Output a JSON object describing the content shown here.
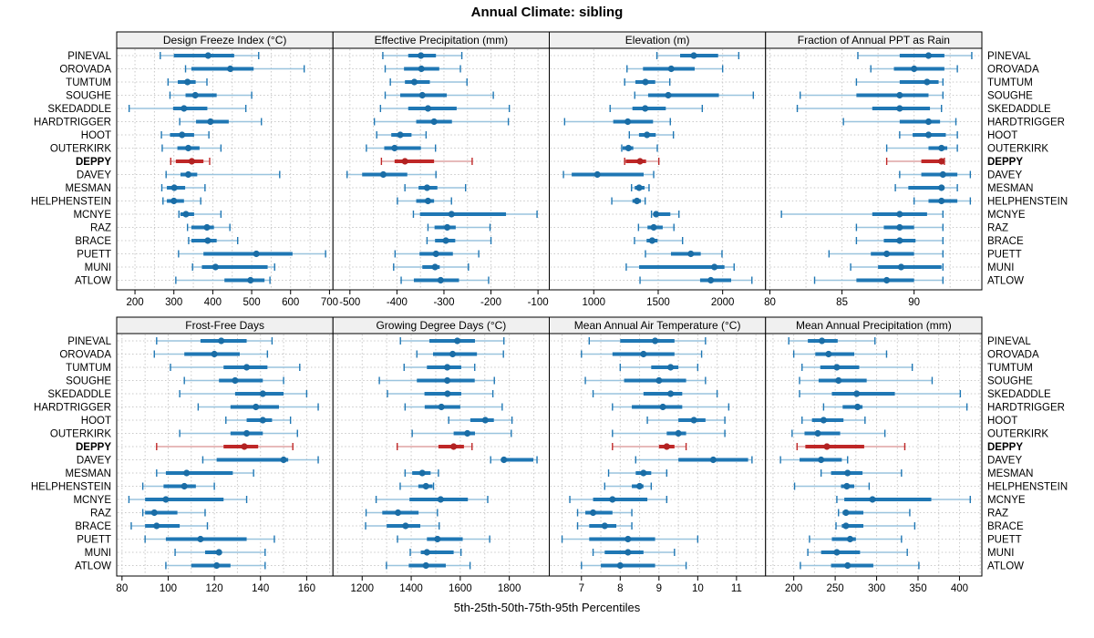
{
  "title": "Annual Climate: sibling",
  "caption": "5th-25th-50th-75th-95th Percentiles",
  "highlight_site": "DEPPY",
  "colors": {
    "main_blue": "#1f77b4",
    "light_blue": "#9ac4de",
    "dot_blue": "#1a6da6",
    "main_red": "#bf2727",
    "light_red": "#dfa3a3",
    "dot_red": "#b22222",
    "strip_bg": "#f0f0f0",
    "grid": "#c9c9c9",
    "border": "#000000"
  },
  "sites": [
    "PINEVAL",
    "OROVADA",
    "TUMTUM",
    "SOUGHE",
    "SKEDADDLE",
    "HARDTRIGGER",
    "HOOT",
    "OUTERKIRK",
    "DEPPY",
    "DAVEY",
    "MESMAN",
    "HELPHENSTEIN",
    "MCNYE",
    "RAZ",
    "BRACE",
    "PUETT",
    "MUNI",
    "ATLOW"
  ],
  "chart_data": {
    "type": "dotplot-percentiles",
    "percentile_labels": [
      "5th",
      "25th",
      "50th",
      "75th",
      "95th"
    ],
    "layout": "2 rows x 4 columns trellis, shared site rows, DEPPY highlighted red/bold",
    "panels": [
      {
        "title": "Design Freeze Index (°C)",
        "xlim": [
          153,
          709
        ],
        "ticks": [
          200,
          300,
          400,
          500,
          600,
          700
        ],
        "grid_step": 50,
        "values": [
          [
            265,
            300,
            388,
            455,
            518
          ],
          [
            330,
            345,
            445,
            505,
            635
          ],
          [
            285,
            310,
            335,
            356,
            385
          ],
          [
            290,
            330,
            355,
            410,
            500
          ],
          [
            185,
            298,
            326,
            386,
            485
          ],
          [
            315,
            357,
            394,
            441,
            525
          ],
          [
            268,
            290,
            321,
            352,
            390
          ],
          [
            270,
            309,
            337,
            366,
            421
          ],
          [
            292,
            305,
            346,
            376,
            392
          ],
          [
            280,
            317,
            337,
            360,
            572
          ],
          [
            269,
            282,
            301,
            329,
            380
          ],
          [
            272,
            282,
            300,
            326,
            369
          ],
          [
            313,
            317,
            331,
            352,
            421
          ],
          [
            335,
            345,
            385,
            403,
            444
          ],
          [
            338,
            345,
            387,
            410,
            464
          ],
          [
            312,
            376,
            512,
            605,
            690
          ],
          [
            348,
            372,
            407,
            541,
            559
          ],
          [
            305,
            430,
            497,
            533,
            547
          ]
        ]
      },
      {
        "title": "Effective Precipitation (mm)",
        "xlim": [
          -536,
          -76
        ],
        "ticks": [
          -500,
          -400,
          -300,
          -200,
          -100
        ],
        "grid_step": 50,
        "values": [
          [
            -430,
            -376,
            -349,
            -317,
            -262
          ],
          [
            -425,
            -385,
            -348,
            -310,
            -265
          ],
          [
            -414,
            -383,
            -363,
            -330,
            -251
          ],
          [
            -425,
            -393,
            -346,
            -294,
            -195
          ],
          [
            -435,
            -376,
            -334,
            -273,
            -161
          ],
          [
            -448,
            -359,
            -321,
            -283,
            -163
          ],
          [
            -443,
            -412,
            -393,
            -369,
            -338
          ],
          [
            -465,
            -427,
            -405,
            -349,
            -318
          ],
          [
            -433,
            -405,
            -383,
            -321,
            -240
          ],
          [
            -506,
            -474,
            -429,
            -378,
            -317
          ],
          [
            -383,
            -354,
            -336,
            -314,
            -254
          ],
          [
            -399,
            -359,
            -334,
            -321,
            -284
          ],
          [
            -365,
            -351,
            -284,
            -168,
            -102
          ],
          [
            -334,
            -320,
            -293,
            -275,
            -202
          ],
          [
            -336,
            -319,
            -296,
            -276,
            -200
          ],
          [
            -404,
            -352,
            -317,
            -281,
            -226
          ],
          [
            -407,
            -346,
            -319,
            -309,
            -248
          ],
          [
            -391,
            -364,
            -307,
            -268,
            -205
          ]
        ]
      },
      {
        "title": "Elevation (m)",
        "xlim": [
          655,
          2333
        ],
        "ticks": [
          1000,
          1500,
          2000
        ],
        "grid_step": 500,
        "values": [
          [
            1490,
            1670,
            1776,
            1965,
            2125
          ],
          [
            1258,
            1382,
            1601,
            1783,
            2000
          ],
          [
            1240,
            1323,
            1401,
            1477,
            1590
          ],
          [
            1318,
            1422,
            1578,
            1971,
            2238
          ],
          [
            1127,
            1300,
            1399,
            1559,
            1842
          ],
          [
            774,
            1151,
            1264,
            1460,
            1594
          ],
          [
            1276,
            1351,
            1413,
            1481,
            1618
          ],
          [
            1217,
            1224,
            1269,
            1307,
            1493
          ],
          [
            1240,
            1248,
            1359,
            1406,
            1505
          ],
          [
            765,
            829,
            1028,
            1387,
            1465
          ],
          [
            1293,
            1318,
            1352,
            1394,
            1429
          ],
          [
            1140,
            1300,
            1335,
            1366,
            1399
          ],
          [
            1448,
            1477,
            1484,
            1594,
            1661
          ],
          [
            1347,
            1417,
            1465,
            1535,
            1622
          ],
          [
            1316,
            1410,
            1453,
            1495,
            1689
          ],
          [
            1401,
            1599,
            1753,
            1830,
            1995
          ],
          [
            1252,
            1352,
            1936,
            2014,
            2089
          ],
          [
            1359,
            1825,
            1908,
            2066,
            2227
          ]
        ]
      },
      {
        "title": "Fraction of Annual PPT as Rain",
        "xlim": [
          79.7,
          94.7
        ],
        "ticks": [
          80,
          85,
          90
        ],
        "grid_step": 2.5,
        "values": [
          [
            86.1,
            89.0,
            91.0,
            92.1,
            94.0
          ],
          [
            87.0,
            88.6,
            90.0,
            92.1,
            93.0
          ],
          [
            86.0,
            89.0,
            90.9,
            91.7,
            92.0
          ],
          [
            82.1,
            86.0,
            89.0,
            91.0,
            92.0
          ],
          [
            81.9,
            87.1,
            89.0,
            91.1,
            91.9
          ],
          [
            85.1,
            89.0,
            91.0,
            91.8,
            92.9
          ],
          [
            89.0,
            89.9,
            91.0,
            92.2,
            93.0
          ],
          [
            88.1,
            91.0,
            91.9,
            92.3,
            93.0
          ],
          [
            88.1,
            90.5,
            91.9,
            92.0,
            92.1
          ],
          [
            89.0,
            90.5,
            92.0,
            93.0,
            93.9
          ],
          [
            88.7,
            89.6,
            91.9,
            92.1,
            93.0
          ],
          [
            90.0,
            91.0,
            91.9,
            93.0,
            93.9
          ],
          [
            80.8,
            87.1,
            89.0,
            90.9,
            92.0
          ],
          [
            86.0,
            87.9,
            89.0,
            90.0,
            92.0
          ],
          [
            86.0,
            87.9,
            89.0,
            90.1,
            92.0
          ],
          [
            84.1,
            87.0,
            88.1,
            90.0,
            92.0
          ],
          [
            85.6,
            87.5,
            89.1,
            91.9,
            92.0
          ],
          [
            83.1,
            86.0,
            88.1,
            90.0,
            92.0
          ]
        ]
      },
      {
        "title": "Frost-Free Days",
        "xlim": [
          77.7,
          171.4
        ],
        "ticks": [
          80,
          100,
          120,
          140,
          160
        ],
        "grid_step": 10,
        "values": [
          [
            95,
            114,
            123,
            134,
            145
          ],
          [
            94,
            107,
            120,
            131,
            143
          ],
          [
            101,
            124,
            134,
            143,
            157
          ],
          [
            107,
            122,
            129,
            141,
            150
          ],
          [
            105,
            129,
            141,
            150,
            160
          ],
          [
            113,
            127,
            138,
            148,
            165
          ],
          [
            125,
            134,
            141,
            145,
            153
          ],
          [
            105,
            127,
            134,
            141,
            156
          ],
          [
            95,
            124,
            133,
            139,
            154
          ],
          [
            115,
            121,
            150,
            152,
            165
          ],
          [
            95,
            99,
            108,
            128,
            137
          ],
          [
            89,
            98,
            107,
            112,
            120
          ],
          [
            83,
            90,
            99,
            124,
            134
          ],
          [
            89,
            90,
            94,
            104,
            116
          ],
          [
            84,
            90,
            95,
            105,
            117
          ],
          [
            90,
            99,
            114,
            134,
            146
          ],
          [
            103,
            116,
            122,
            123,
            142
          ],
          [
            99,
            110,
            121,
            127,
            142
          ]
        ]
      },
      {
        "title": "Growing Degree Days (°C)",
        "xlim": [
          1081,
          1963
        ],
        "ticks": [
          1200,
          1400,
          1600,
          1800
        ],
        "grid_step": 100,
        "values": [
          [
            1356,
            1474,
            1588,
            1660,
            1778
          ],
          [
            1423,
            1489,
            1569,
            1668,
            1776
          ],
          [
            1371,
            1464,
            1547,
            1604,
            1659
          ],
          [
            1270,
            1423,
            1547,
            1659,
            1739
          ],
          [
            1303,
            1454,
            1548,
            1604,
            1733
          ],
          [
            1375,
            1455,
            1523,
            1600,
            1771
          ],
          [
            1553,
            1641,
            1702,
            1737,
            1811
          ],
          [
            1404,
            1573,
            1629,
            1660,
            1808
          ],
          [
            1343,
            1511,
            1573,
            1615,
            1648
          ],
          [
            1724,
            1768,
            1778,
            1898,
            1913
          ],
          [
            1375,
            1404,
            1445,
            1479,
            1511
          ],
          [
            1355,
            1429,
            1460,
            1487,
            1491
          ],
          [
            1257,
            1393,
            1520,
            1631,
            1712
          ],
          [
            1216,
            1282,
            1346,
            1430,
            1507
          ],
          [
            1214,
            1300,
            1377,
            1437,
            1514
          ],
          [
            1344,
            1464,
            1507,
            1610,
            1720
          ],
          [
            1396,
            1439,
            1464,
            1573,
            1603
          ],
          [
            1299,
            1390,
            1460,
            1541,
            1640
          ]
        ]
      },
      {
        "title": "Mean Annual Air Temperature (°C)",
        "xlim": [
          6.17,
          11.75
        ],
        "ticks": [
          7,
          8,
          9,
          10,
          11
        ],
        "grid_step": 0.5,
        "values": [
          [
            7.2,
            8.0,
            8.9,
            9.4,
            10.2
          ],
          [
            7.0,
            7.8,
            8.6,
            9.4,
            10.1
          ],
          [
            8.0,
            8.8,
            9.3,
            9.5,
            10.0
          ],
          [
            7.1,
            8.1,
            9.0,
            9.7,
            10.2
          ],
          [
            7.3,
            8.6,
            9.3,
            9.6,
            10.5
          ],
          [
            7.8,
            8.3,
            9.1,
            9.6,
            10.8
          ],
          [
            8.7,
            9.5,
            9.9,
            10.2,
            10.7
          ],
          [
            7.8,
            9.2,
            9.5,
            9.7,
            10.7
          ],
          [
            7.8,
            9.0,
            9.2,
            9.4,
            9.7
          ],
          [
            8.4,
            9.5,
            10.4,
            11.3,
            11.4
          ],
          [
            7.7,
            8.4,
            8.6,
            8.8,
            9.2
          ],
          [
            7.6,
            8.3,
            8.5,
            8.6,
            8.8
          ],
          [
            6.7,
            7.3,
            7.8,
            8.7,
            9.2
          ],
          [
            6.9,
            7.1,
            7.3,
            7.8,
            8.3
          ],
          [
            6.9,
            7.2,
            7.6,
            7.9,
            8.3
          ],
          [
            6.5,
            7.2,
            8.2,
            8.9,
            10.0
          ],
          [
            7.3,
            7.6,
            8.2,
            8.6,
            9.4
          ],
          [
            7.0,
            7.5,
            8.0,
            8.9,
            9.7
          ]
        ]
      },
      {
        "title": "Mean Annual Precipitation (mm)",
        "xlim": [
          166,
          427
        ],
        "ticks": [
          200,
          250,
          300,
          350,
          400
        ],
        "grid_step": 25,
        "values": [
          [
            194,
            217,
            234,
            253,
            298
          ],
          [
            200,
            226,
            242,
            273,
            312
          ],
          [
            210,
            232,
            252,
            279,
            343
          ],
          [
            207,
            230,
            254,
            288,
            367
          ],
          [
            207,
            246,
            276,
            322,
            401
          ],
          [
            236,
            259,
            277,
            283,
            409
          ],
          [
            210,
            222,
            236,
            260,
            286
          ],
          [
            198,
            213,
            229,
            256,
            310
          ],
          [
            204,
            214,
            240,
            285,
            334
          ],
          [
            184,
            207,
            233,
            258,
            265
          ],
          [
            233,
            245,
            265,
            283,
            330
          ],
          [
            201,
            257,
            264,
            273,
            291
          ],
          [
            252,
            261,
            295,
            366,
            413
          ],
          [
            254,
            259,
            263,
            284,
            340
          ],
          [
            251,
            258,
            263,
            284,
            346
          ],
          [
            219,
            246,
            268,
            275,
            330
          ],
          [
            217,
            233,
            252,
            280,
            337
          ],
          [
            208,
            245,
            265,
            296,
            351
          ]
        ]
      }
    ]
  }
}
